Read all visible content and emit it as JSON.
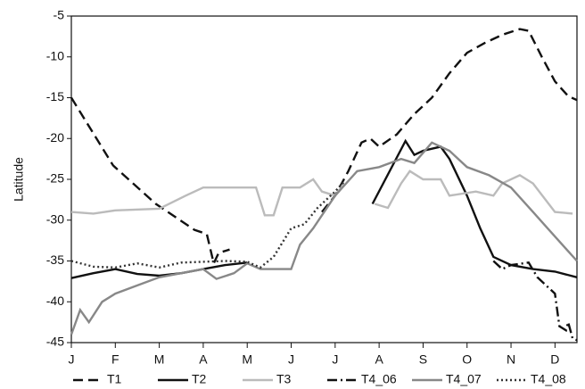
{
  "chart_data": {
    "type": "line",
    "y_label": "Latitude",
    "xlim": [
      0,
      11.5
    ],
    "xticks": [
      {
        "value": 0,
        "label": "J"
      },
      {
        "value": 1,
        "label": "F"
      },
      {
        "value": 2,
        "label": "M"
      },
      {
        "value": 3,
        "label": "A"
      },
      {
        "value": 4,
        "label": "M"
      },
      {
        "value": 5,
        "label": "J"
      },
      {
        "value": 6,
        "label": "J"
      },
      {
        "value": 7,
        "label": "A"
      },
      {
        "value": 8,
        "label": "S"
      },
      {
        "value": 9,
        "label": "O"
      },
      {
        "value": 10,
        "label": "N"
      },
      {
        "value": 11,
        "label": "D"
      }
    ],
    "ylim": [
      -45,
      -5
    ],
    "yticks": [
      -45,
      -40,
      -35,
      -30,
      -25,
      -20,
      -15,
      -10,
      -5
    ],
    "legend": "bottom",
    "series": [
      {
        "name": "T1",
        "color": "#111111",
        "line_style": "dashed",
        "x": [
          0,
          0.95,
          1.92,
          2.8,
          3.08,
          3.24,
          3.35,
          3.6,
          4.6,
          5.7,
          6.0,
          6.3,
          6.6,
          6.8,
          7.0,
          7.4,
          7.8,
          8.2,
          8.6,
          9.0,
          9.4,
          9.8,
          10.2,
          10.4,
          10.7,
          11.0,
          11.3,
          11.5
        ],
        "values": [
          -15,
          -23.3,
          -28,
          -31.2,
          -31.7,
          -35.3,
          -34,
          -33.6,
          null,
          -29,
          -27,
          -24,
          -20.5,
          -20,
          -21,
          -19.5,
          -17,
          -15,
          -12,
          -9.5,
          -8.3,
          -7.3,
          -6.6,
          -6.8,
          -10,
          -13,
          -14.8,
          -15.3
        ]
      },
      {
        "name": "T2",
        "color": "#111111",
        "line_style": "solid",
        "x": [
          0,
          0.5,
          1,
          1.5,
          2,
          2.5,
          3,
          3.5,
          4,
          5.5,
          6.85,
          7.6,
          7.8,
          8.0,
          8.4,
          8.6,
          9.0,
          9.3,
          9.6,
          10,
          10.5,
          11,
          11.5
        ],
        "values": [
          -37.1,
          -36.5,
          -36,
          -36.6,
          -36.8,
          -36.5,
          -36,
          -35.5,
          -35.2,
          null,
          -28,
          -20.3,
          -22,
          -21.5,
          -21,
          -22.5,
          -27,
          -31,
          -34.5,
          -35.5,
          -36,
          -36.3,
          -37
        ]
      },
      {
        "name": "T3",
        "color": "#bbbbbb",
        "line_style": "solid",
        "x": [
          0,
          0.5,
          1,
          2,
          2.6,
          3,
          3.8,
          4.2,
          4.4,
          4.6,
          4.8,
          5.2,
          5.5,
          5.7,
          6.0,
          6.2,
          6.6,
          6.9,
          7.2,
          7.5,
          7.7,
          8,
          8.4,
          8.6,
          9.2,
          9.6,
          9.8,
          10.2,
          10.5,
          11,
          11.4
        ],
        "values": [
          -29,
          -29.2,
          -28.8,
          -28.6,
          -27,
          -26,
          -26,
          -26,
          -29.4,
          -29.4,
          -26,
          -26,
          -25,
          -26.5,
          -27,
          -25.5,
          null,
          -28,
          -28.5,
          -25.5,
          -24,
          -25,
          -25,
          -27,
          -26.5,
          -27,
          -25.5,
          -24.5,
          -25.5,
          -29,
          -29.2
        ]
      },
      {
        "name": "T4_06",
        "color": "#111111",
        "line_style": "dashdot",
        "x": [
          9.6,
          9.8,
          10,
          10.4,
          10.6,
          11,
          11.1,
          11.25,
          11.3,
          11.4,
          11.5
        ],
        "values": [
          -35,
          -36,
          -35.5,
          -35.2,
          -37,
          -39,
          -43,
          -43.5,
          -42.5,
          -44.5,
          -44.7
        ]
      },
      {
        "name": "T4_07",
        "color": "#888888",
        "line_style": "solid",
        "x": [
          0,
          0.2,
          0.4,
          0.7,
          1,
          1.5,
          2,
          2.5,
          3,
          3.3,
          3.7,
          4,
          4.3,
          5,
          5.2,
          5.5,
          6,
          6.5,
          7,
          7.5,
          7.8,
          8.2,
          8.6,
          9,
          9.5,
          10,
          10.5,
          11,
          11.5
        ],
        "values": [
          -44,
          -41,
          -42.5,
          -40,
          -39,
          -38,
          -37,
          -36.5,
          -36,
          -37.2,
          -36.5,
          -35.3,
          -36,
          -36,
          -33,
          -31,
          -27,
          -24,
          -23.5,
          -22.5,
          -23,
          -20.5,
          -21.5,
          -23.5,
          -24.5,
          -26,
          -29,
          -32,
          -35
        ]
      },
      {
        "name": "T4_08",
        "color": "#333333",
        "line_style": "dotted",
        "x": [
          0,
          0.5,
          1,
          1.5,
          2,
          2.5,
          3,
          3.5,
          4,
          4.3,
          4.6,
          5,
          5.3,
          5.6,
          6,
          6.2
        ],
        "values": [
          -35,
          -35.7,
          -35.8,
          -35.3,
          -35.8,
          -35.2,
          -35.1,
          -35,
          -35.1,
          -35.8,
          -34.5,
          -31,
          -30.5,
          -28.5,
          -26.5,
          -25.3
        ]
      }
    ]
  }
}
